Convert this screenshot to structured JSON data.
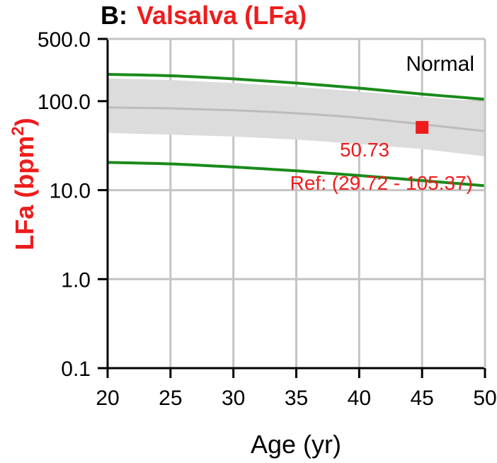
{
  "chart_data": {
    "type": "line",
    "title_prefix": "B:",
    "title": "Valsalva (LFa)",
    "xlabel": "Age (yr)",
    "ylabel_main": "LFa (bpm",
    "ylabel_sup": "2",
    "ylabel_close": ")",
    "ylabel_full": "LFa (bpm²)",
    "y_scale": "log",
    "xlim": [
      20,
      50
    ],
    "ylim": [
      0.1,
      500
    ],
    "x_ticks": [
      20,
      25,
      30,
      35,
      40,
      45,
      50
    ],
    "x_tick_labels": [
      "20",
      "25",
      "30",
      "35",
      "40",
      "45",
      "50"
    ],
    "y_ticks": [
      0.1,
      1.0,
      10.0,
      100.0,
      500.0
    ],
    "y_tick_labels": [
      "0.1",
      "1.0",
      "10.0",
      "100.0",
      "500.0"
    ],
    "grid": true,
    "x": [
      20,
      25,
      30,
      35,
      40,
      45,
      50
    ],
    "series": [
      {
        "role": "upper-limit",
        "values": [
          200,
          193,
          178,
          160,
          140,
          120,
          105
        ]
      },
      {
        "role": "lower-limit",
        "values": [
          20.5,
          19.7,
          18.2,
          16.5,
          14.6,
          12.8,
          11.2
        ]
      },
      {
        "role": "band-upper",
        "values": [
          180,
          173,
          160,
          145,
          128,
          112,
          98
        ]
      },
      {
        "role": "band-lower",
        "values": [
          44,
          42,
          40,
          37,
          33,
          29,
          24
        ]
      },
      {
        "role": "median",
        "values": [
          85,
          83,
          79,
          73,
          65,
          55,
          46
        ]
      }
    ],
    "point": {
      "x": 45,
      "y": 50.73
    },
    "annotations": {
      "value": "50.73",
      "reference": "Ref: (29.72 - 105.37)",
      "status": "Normal"
    },
    "colors": {
      "limit_line": "#1a8a1a",
      "band": "#dcdcdc",
      "median": "#bbbbbb",
      "point": "#ee1c1c",
      "grid": "#c4c4c4",
      "accent": "#ee1c1c"
    }
  }
}
